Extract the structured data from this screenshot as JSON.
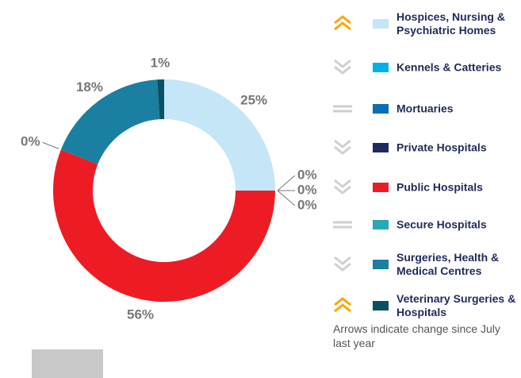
{
  "chart_data": {
    "type": "donut",
    "categories": [
      "Hospices, Nursing & Psychiatric Homes",
      "Kennels & Catteries",
      "Mortuaries",
      "Private Hospitals",
      "Public Hospitals",
      "Secure Hospitals",
      "Surgeries, Health & Medical Centres",
      "Veterinary Surgeries & Hospitals"
    ],
    "values": [
      25,
      0,
      0,
      0,
      56,
      0,
      18,
      1
    ],
    "value_labels": [
      "25%",
      "0%",
      "0%",
      "0%",
      "56%",
      "0%",
      "18%",
      "1%"
    ],
    "colors": [
      "#c5e6f7",
      "#00b0ea",
      "#0a6eb4",
      "#1f2a5c",
      "#ed1c24",
      "#2aa8b8",
      "#1a7fa0",
      "#0b4f63"
    ],
    "trends": [
      "up",
      "down",
      "same",
      "down",
      "down",
      "same",
      "down",
      "up"
    ],
    "note": "Arrows indicate change since July last year"
  }
}
